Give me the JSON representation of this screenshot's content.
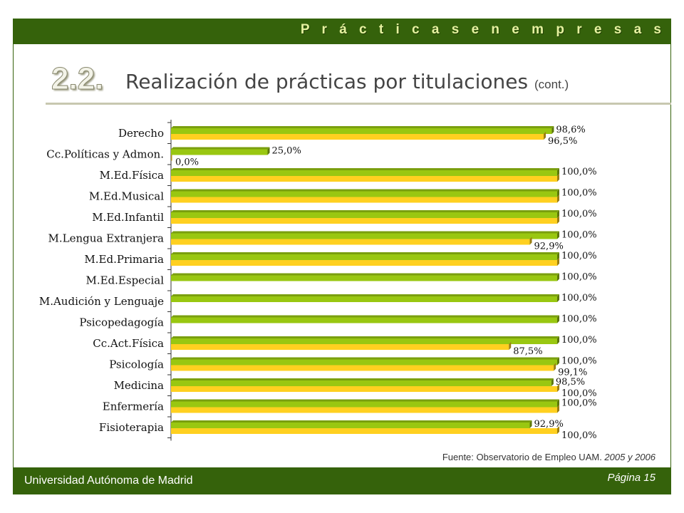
{
  "header": {
    "title": "P r á c t i c a s   e n   e m p r e s a s"
  },
  "section": {
    "number": "2.2.",
    "title": "Realización de prácticas por titulaciones",
    "cont": "(cont.)"
  },
  "source": {
    "text": "Fuente: Observatorio de Empleo UAM. ",
    "years": "2005 y 2006"
  },
  "footer": {
    "university": "Universidad Autónoma de Madrid",
    "page": "Página 15"
  },
  "colors": {
    "bar_a": "#99c711",
    "bar_b": "#ffd020",
    "header_bg": "#35620b"
  },
  "chart_data": {
    "type": "bar",
    "orientation": "horizontal",
    "categories": [
      "Derecho",
      "Cc.Políticas y Admon.",
      "M.Ed.Física",
      "M.Ed.Musical",
      "M.Ed.Infantil",
      "M.Lengua Extranjera",
      "M.Ed.Primaria",
      "M.Ed.Especial",
      "M.Audición y Lenguaje",
      "Psicopedagogía",
      "Cc.Act.Física",
      "Psicología",
      "Medicina",
      "Enfermería",
      "Fisioterapia"
    ],
    "xlim": [
      0,
      100
    ],
    "series": [
      {
        "color": "#99c711",
        "values": [
          98.6,
          25.0,
          100.0,
          100.0,
          100.0,
          100.0,
          100.0,
          100.0,
          100.0,
          100.0,
          100.0,
          100.0,
          98.5,
          100.0,
          92.9
        ],
        "labels": [
          "98,6%",
          "25,0%",
          "100,0%",
          "100,0%",
          "100,0%",
          "100,0%",
          "100,0%",
          "100,0%",
          "100,0%",
          "100,0%",
          "100,0%",
          "100,0%",
          "98,5%",
          "100,0%",
          "92,9%"
        ]
      },
      {
        "color": "#ffd020",
        "values": [
          96.5,
          0.0,
          100.0,
          100.0,
          100.0,
          92.9,
          100.0,
          null,
          null,
          null,
          87.5,
          99.1,
          100.0,
          100.0,
          100.0
        ],
        "labels": [
          "96,5%",
          "0,0%",
          "",
          "",
          "",
          "92,9%",
          "",
          "",
          "",
          "",
          "87,5%",
          "99,1%",
          "100,0%",
          "",
          "100,0%"
        ]
      }
    ]
  }
}
